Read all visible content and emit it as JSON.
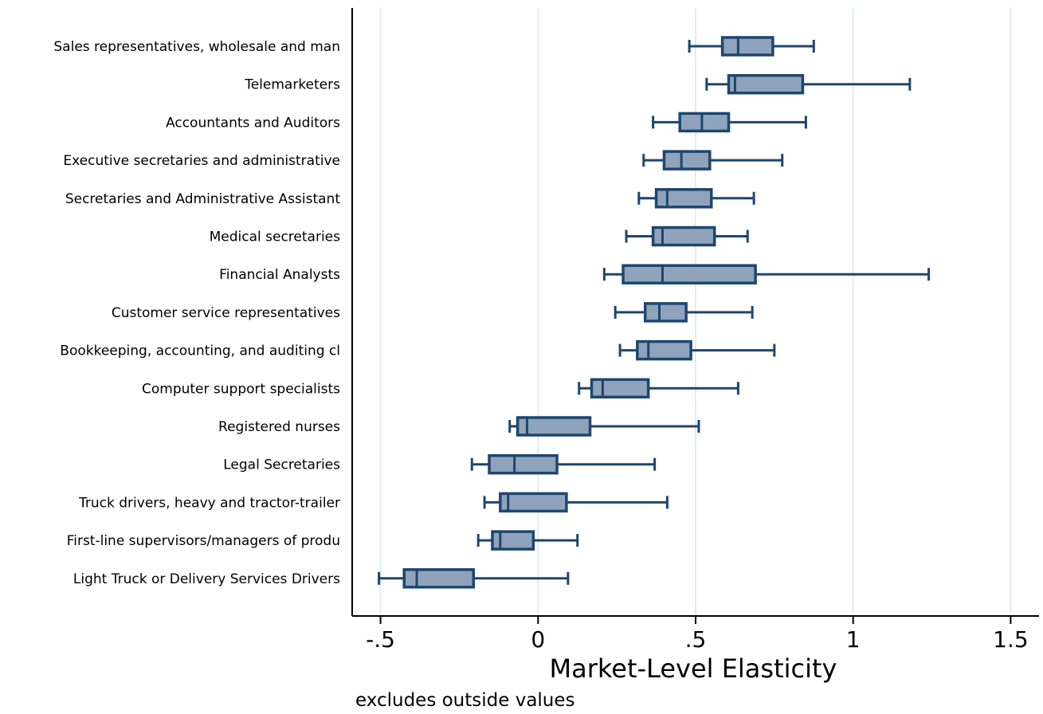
{
  "chart_data": {
    "type": "boxplot",
    "orientation": "horizontal",
    "title": "",
    "xlabel": "Market-Level Elasticity",
    "ylabel": "",
    "note": "excludes outside values",
    "xlim": [
      -0.59,
      1.59
    ],
    "xticks": [
      -0.5,
      0,
      0.5,
      1,
      1.5
    ],
    "xtick_labels": [
      "-.5",
      "0",
      ".5",
      "1",
      "1.5"
    ],
    "grid": "vertical",
    "legend": "none",
    "colors": {
      "box_fill": "#8fa4bc",
      "box_stroke": "#1e466e",
      "grid": "#e2ecef",
      "axis": "#000000"
    },
    "categories": [
      "Sales representatives, wholesale and man",
      "Telemarketers",
      "Accountants and Auditors",
      "Executive secretaries and administrative",
      "Secretaries and Administrative Assistant",
      "Medical secretaries",
      "Financial Analysts",
      "Customer service representatives",
      "Bookkeeping, accounting, and auditing cl",
      "Computer support specialists",
      "Registered nurses",
      "Legal Secretaries",
      "Truck drivers, heavy and tractor-trailer",
      "First-line supervisors/managers of produ",
      "Light Truck or Delivery Services Drivers"
    ],
    "boxes": [
      {
        "whisker_low": 0.48,
        "q1": 0.585,
        "median": 0.635,
        "q3": 0.745,
        "whisker_high": 0.875
      },
      {
        "whisker_low": 0.535,
        "q1": 0.605,
        "median": 0.625,
        "q3": 0.84,
        "whisker_high": 1.18
      },
      {
        "whisker_low": 0.365,
        "q1": 0.45,
        "median": 0.52,
        "q3": 0.605,
        "whisker_high": 0.85
      },
      {
        "whisker_low": 0.335,
        "q1": 0.4,
        "median": 0.455,
        "q3": 0.545,
        "whisker_high": 0.775
      },
      {
        "whisker_low": 0.32,
        "q1": 0.375,
        "median": 0.41,
        "q3": 0.55,
        "whisker_high": 0.685
      },
      {
        "whisker_low": 0.28,
        "q1": 0.365,
        "median": 0.395,
        "q3": 0.56,
        "whisker_high": 0.665
      },
      {
        "whisker_low": 0.21,
        "q1": 0.27,
        "median": 0.395,
        "q3": 0.69,
        "whisker_high": 1.24
      },
      {
        "whisker_low": 0.245,
        "q1": 0.34,
        "median": 0.385,
        "q3": 0.47,
        "whisker_high": 0.68
      },
      {
        "whisker_low": 0.26,
        "q1": 0.315,
        "median": 0.35,
        "q3": 0.485,
        "whisker_high": 0.75
      },
      {
        "whisker_low": 0.13,
        "q1": 0.17,
        "median": 0.205,
        "q3": 0.35,
        "whisker_high": 0.635
      },
      {
        "whisker_low": -0.09,
        "q1": -0.065,
        "median": -0.035,
        "q3": 0.165,
        "whisker_high": 0.51
      },
      {
        "whisker_low": -0.21,
        "q1": -0.155,
        "median": -0.075,
        "q3": 0.06,
        "whisker_high": 0.37
      },
      {
        "whisker_low": -0.17,
        "q1": -0.12,
        "median": -0.095,
        "q3": 0.09,
        "whisker_high": 0.41
      },
      {
        "whisker_low": -0.19,
        "q1": -0.145,
        "median": -0.12,
        "q3": -0.015,
        "whisker_high": 0.125
      },
      {
        "whisker_low": -0.505,
        "q1": -0.425,
        "median": -0.385,
        "q3": -0.205,
        "whisker_high": 0.095
      }
    ]
  }
}
